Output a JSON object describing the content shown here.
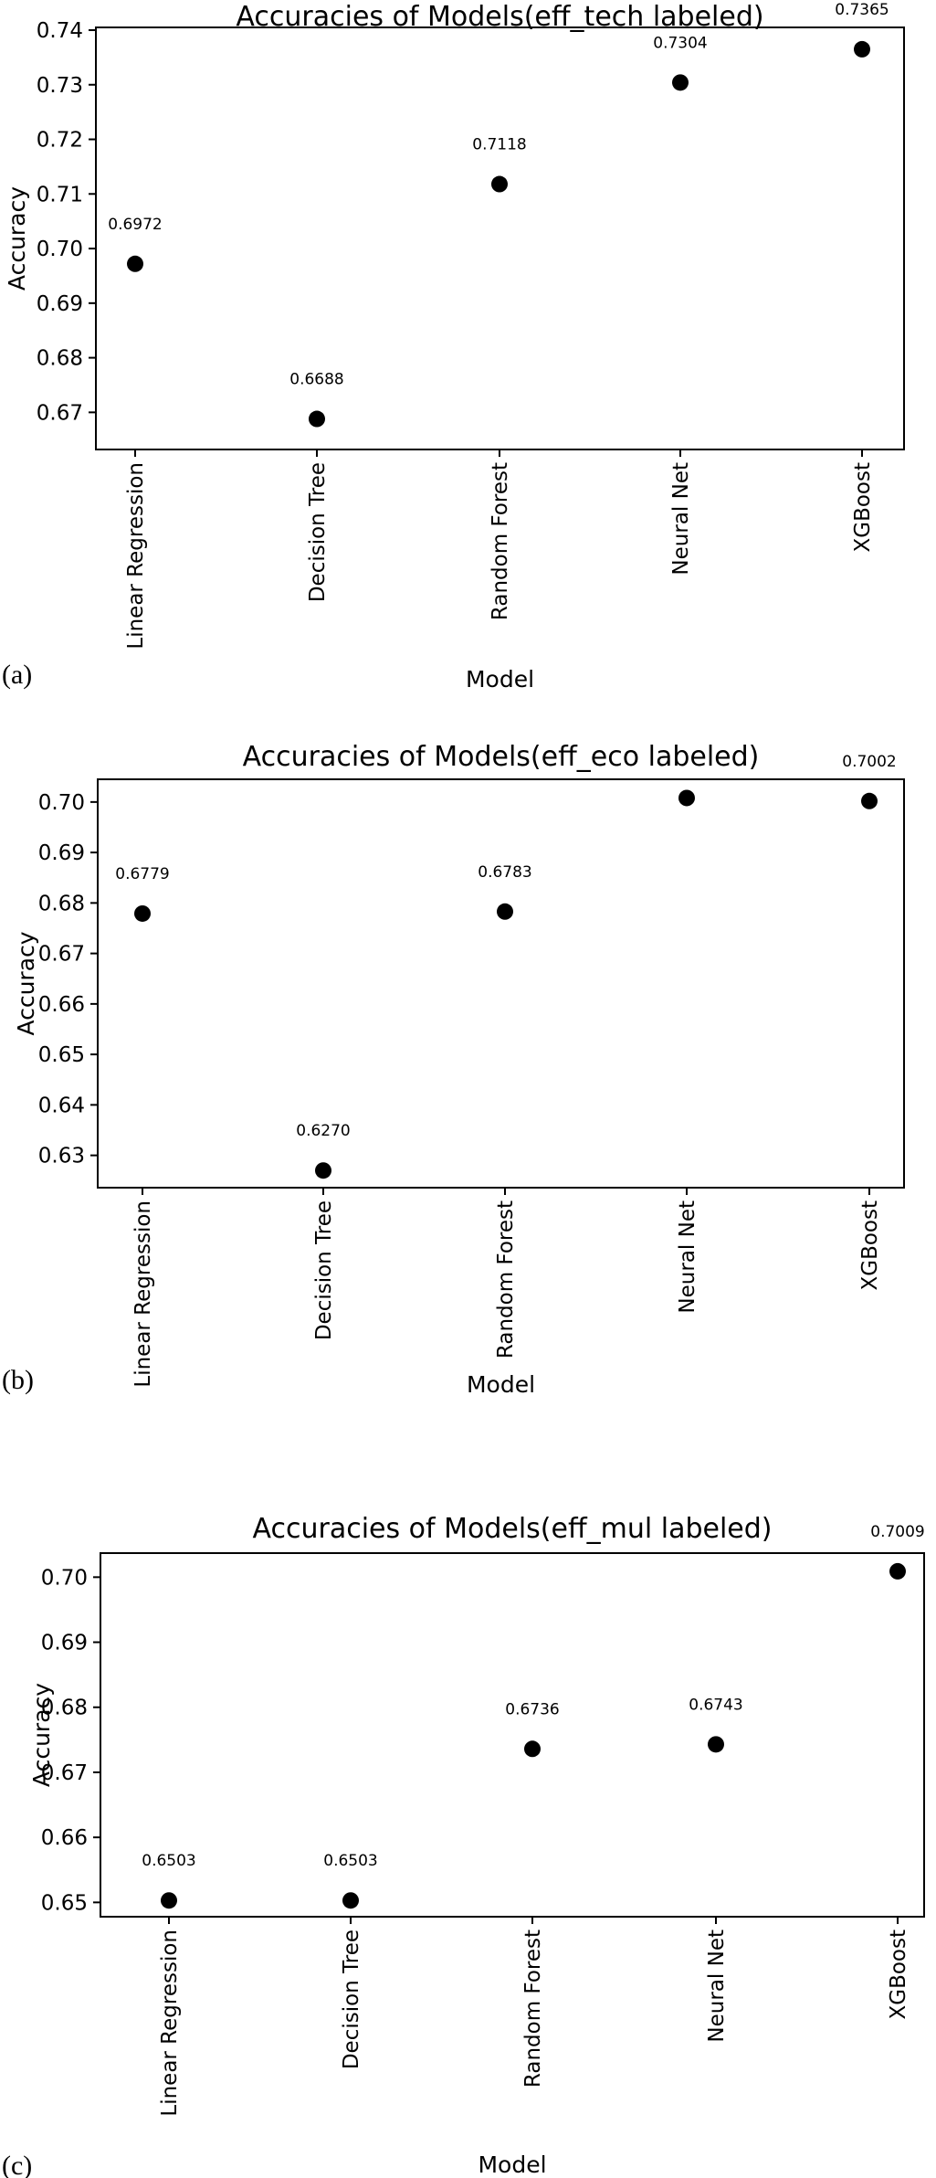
{
  "chart_data": [
    {
      "type": "scatter",
      "panel_label": "(a)",
      "title": "Accuracies of Models(eff_tech labeled)",
      "xlabel": "Model",
      "ylabel": "Accuracy",
      "categories": [
        "Linear Regression",
        "Decision Tree",
        "Random Forest",
        "Neural Net",
        "XGBoost"
      ],
      "values": [
        0.6972,
        0.6688,
        0.7118,
        0.7304,
        0.7365
      ],
      "data_labels": [
        "0.6972",
        "0.6688",
        "0.7118",
        "0.7304",
        "0.7365"
      ],
      "yticks": [
        0.67,
        0.68,
        0.69,
        0.7,
        0.71,
        0.72,
        0.73,
        0.74
      ],
      "ytick_labels": [
        "0.67",
        "0.68",
        "0.69",
        "0.70",
        "0.71",
        "0.72",
        "0.73",
        "0.74"
      ],
      "ylim": [
        0.6632,
        0.7405
      ],
      "grid": false,
      "marker_color": "#000000"
    },
    {
      "type": "scatter",
      "panel_label": "(b)",
      "title": "Accuracies of Models(eff_eco labeled)",
      "xlabel": "Model",
      "ylabel": "Accuracy",
      "categories": [
        "Linear Regression",
        "Decision Tree",
        "Random Forest",
        "Neural Net",
        "XGBoost"
      ],
      "values": [
        0.6779,
        0.627,
        0.6783,
        0.7008,
        0.7002
      ],
      "data_labels": [
        "0.6779",
        "0.6270",
        "0.6783",
        "",
        "0.7002"
      ],
      "yticks": [
        0.63,
        0.64,
        0.65,
        0.66,
        0.67,
        0.68,
        0.69,
        0.7
      ],
      "ytick_labels": [
        "0.63",
        "0.64",
        "0.65",
        "0.66",
        "0.67",
        "0.68",
        "0.69",
        "0.70"
      ],
      "ylim": [
        0.6236,
        0.7045
      ],
      "grid": false,
      "marker_color": "#000000"
    },
    {
      "type": "scatter",
      "panel_label": "(c)",
      "title": "Accuracies of Models(eff_mul labeled)",
      "xlabel": "Model",
      "ylabel": "Accuracy",
      "categories": [
        "Linear Regression",
        "Decision Tree",
        "Random Forest",
        "Neural Net",
        "XGBoost"
      ],
      "values": [
        0.6503,
        0.6503,
        0.6736,
        0.6743,
        0.7009
      ],
      "data_labels": [
        "0.6503",
        "0.6503",
        "0.6736",
        "0.6743",
        "0.7009"
      ],
      "yticks": [
        0.65,
        0.66,
        0.67,
        0.68,
        0.69,
        0.7
      ],
      "ytick_labels": [
        "0.65",
        "0.66",
        "0.67",
        "0.68",
        "0.69",
        "0.70"
      ],
      "ylim": [
        0.6478,
        0.7037
      ],
      "grid": false,
      "marker_color": "#000000"
    }
  ]
}
